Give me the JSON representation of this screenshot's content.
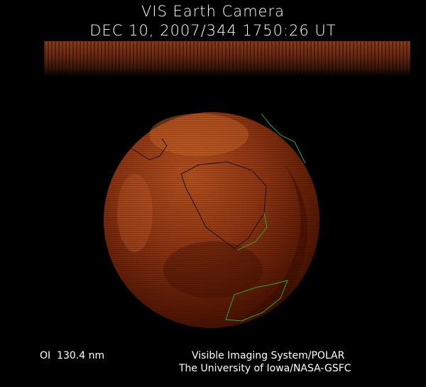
{
  "header": {
    "title": "VIS Earth Camera",
    "timestamp": "DEC 10, 2007/344 1750:26 UT"
  },
  "footer": {
    "wavelength": "OI  130.4 nm",
    "credit_line1": "Visible Imaging System/POLAR",
    "credit_line2": "The University of Iowa/NASA-GSFC"
  },
  "colors": {
    "background": "#000000",
    "emission_bright": "#d8702c",
    "emission_dark": "#4a1200",
    "coastline": "#2fa82f",
    "coastline_dark": "#000000"
  }
}
